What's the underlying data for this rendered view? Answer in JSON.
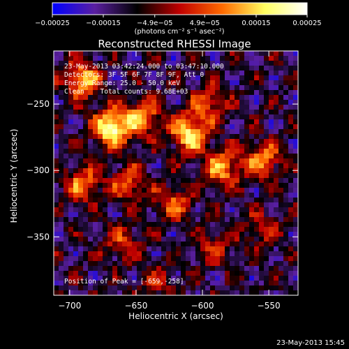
{
  "chart_data": {
    "type": "heatmap",
    "title": "Reconstructed RHESSI Image",
    "xlabel": "Heliocentric X (arcsec)",
    "ylabel": "Heliocentric Y (arcsec)",
    "xlim": [
      -712,
      -528
    ],
    "ylim": [
      -394,
      -210
    ],
    "x_ticks": [
      -700,
      -650,
      -600,
      -550
    ],
    "y_ticks": [
      -250,
      -300,
      -350
    ],
    "x_tick_labels": [
      "−700",
      "−650",
      "−600",
      "−550"
    ],
    "y_tick_labels": [
      "−250",
      "−300",
      "−350"
    ],
    "colorbar": {
      "range": [
        -0.00025,
        0.00025
      ],
      "ticks": [
        -0.00025,
        -0.00015,
        -4.9e-05,
        4.9e-05,
        0.00015,
        0.00025
      ],
      "tick_labels": [
        "−0.00025",
        "−0.00015",
        "−4.9e−05",
        "4.9e−05",
        "0.00015",
        "0.00025"
      ],
      "unit_label": "(photons cm⁻² s⁻¹ asec⁻²)",
      "colors": [
        "#0000ff",
        "#5a1fa0",
        "#000000",
        "#c00000",
        "#ff6a00",
        "#ffff60",
        "#ffffff"
      ]
    },
    "annotations": [
      "23-May-2013 03:42:24.000 to 03:47:10.000",
      "Detectors: 3F 5F 6F 7F 8F 9F, Att 0",
      "Energy Range: 25.0 - 50.0 keV",
      "Clean    Total counts: 9.68E+03"
    ],
    "peak_label": "Position of Peak = [-659,-258]",
    "peak": [
      -659,
      -258
    ],
    "bright_sources": [
      {
        "x": -668,
        "y": -268,
        "peak": 0.00025
      },
      {
        "x": -690,
        "y": -232,
        "peak": 0.00018
      },
      {
        "x": -610,
        "y": -272,
        "peak": 0.00022
      },
      {
        "x": -645,
        "y": -260,
        "peak": 0.00016
      },
      {
        "x": -585,
        "y": -298,
        "peak": 0.00017
      },
      {
        "x": -555,
        "y": -292,
        "peak": 0.00016
      },
      {
        "x": -595,
        "y": -250,
        "peak": 0.00012
      },
      {
        "x": -690,
        "y": -310,
        "peak": 0.00014
      },
      {
        "x": -655,
        "y": -310,
        "peak": 0.00012
      },
      {
        "x": -622,
        "y": -325,
        "peak": 0.00013
      },
      {
        "x": -660,
        "y": -355,
        "peak": 0.0001
      },
      {
        "x": -590,
        "y": -358,
        "peak": 9e-05
      },
      {
        "x": -555,
        "y": -345,
        "peak": 8e-05
      },
      {
        "x": -635,
        "y": -385,
        "peak": 7e-05
      }
    ],
    "grid": false
  },
  "footer_timestamp": "23-May-2013 15:45"
}
